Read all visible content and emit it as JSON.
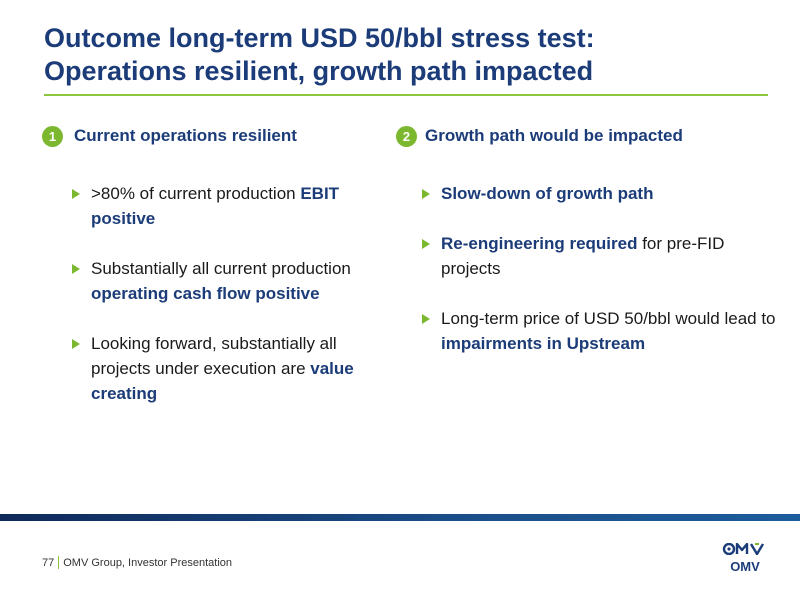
{
  "slide": {
    "title_line1": "Outcome long-term USD 50/bbl stress test:",
    "title_line2": "Operations resilient, growth path impacted"
  },
  "left": {
    "number": "1",
    "heading": "Current operations resilient",
    "bullets": [
      {
        "pre": ">80% of current production ",
        "bold": "EBIT positive",
        "post": ""
      },
      {
        "pre": "Substantially all current production ",
        "bold": "operating cash flow positive",
        "post": ""
      },
      {
        "pre": "Looking forward, substantially all projects under execution are ",
        "bold": "value creating",
        "post": ""
      }
    ]
  },
  "right": {
    "number": "2",
    "heading": "Growth path would be impacted",
    "bullets": [
      {
        "pre": "",
        "bold": "Slow-down of growth path",
        "post": ""
      },
      {
        "pre": "",
        "bold": "Re-engineering required",
        "post": " for pre-FID projects"
      },
      {
        "pre": "Long-term price of USD 50/bbl would lead to ",
        "bold": "impairments in Upstream",
        "post": ""
      }
    ]
  },
  "footer": {
    "page_number": "77",
    "text": "OMV Group, Investor Presentation"
  },
  "logo": {
    "text": "OMV",
    "icon": "omv-logo-icon",
    "color": "#1b3c78"
  },
  "colors": {
    "accent_green": "#7cb82f",
    "brand_blue": "#1b3c78"
  }
}
